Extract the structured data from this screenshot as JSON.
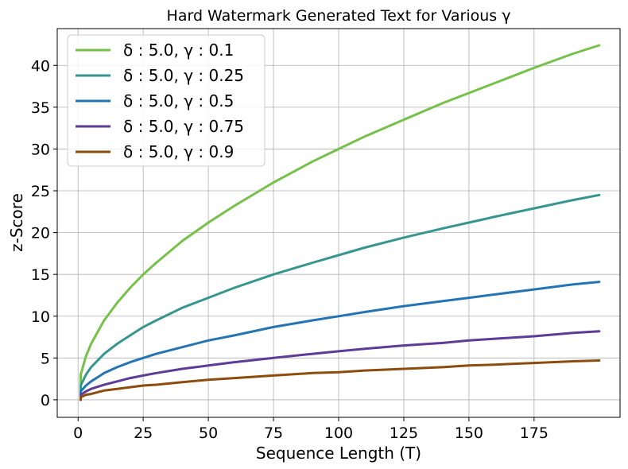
{
  "chart_data": {
    "type": "line",
    "title": "Hard Watermark Generated Text for Various γ",
    "xlabel": "Sequence Length (T)",
    "ylabel": "z-Score",
    "xlim": [
      -8,
      208
    ],
    "ylim": [
      -2.1,
      44.4
    ],
    "x_ticks": [
      0,
      25,
      50,
      75,
      100,
      125,
      150,
      175
    ],
    "y_ticks": [
      0,
      5,
      10,
      15,
      20,
      25,
      30,
      35,
      40
    ],
    "x": [
      1,
      3,
      5,
      10,
      15,
      20,
      25,
      30,
      40,
      50,
      60,
      75,
      90,
      100,
      110,
      125,
      140,
      150,
      160,
      175,
      190,
      200
    ],
    "grid": true,
    "legend_position": "top-left",
    "series": [
      {
        "name": "δ : 5.0, γ : 0.1",
        "color": "#77c04a",
        "values": [
          3.0,
          5.2,
          6.7,
          9.5,
          11.6,
          13.4,
          15.0,
          16.4,
          19.0,
          21.2,
          23.2,
          26.0,
          28.5,
          30.0,
          31.5,
          33.5,
          35.5,
          36.7,
          37.9,
          39.7,
          41.4,
          42.4
        ]
      },
      {
        "name": "δ : 5.0, γ : 0.25",
        "color": "#36968f",
        "values": [
          1.7,
          3.0,
          3.9,
          5.5,
          6.7,
          7.7,
          8.7,
          9.5,
          11.0,
          12.2,
          13.4,
          15.0,
          16.4,
          17.3,
          18.2,
          19.4,
          20.5,
          21.2,
          21.9,
          22.9,
          23.9,
          24.5
        ]
      },
      {
        "name": "δ : 5.0, γ : 0.5",
        "color": "#2474b4",
        "values": [
          1.0,
          1.7,
          2.2,
          3.2,
          3.9,
          4.5,
          5.0,
          5.5,
          6.3,
          7.1,
          7.7,
          8.7,
          9.5,
          10.0,
          10.5,
          11.2,
          11.8,
          12.2,
          12.6,
          13.2,
          13.8,
          14.1
        ]
      },
      {
        "name": "δ : 5.0, γ : 0.75",
        "color": "#5e3b97",
        "values": [
          0.6,
          1.0,
          1.3,
          1.8,
          2.2,
          2.6,
          2.9,
          3.2,
          3.7,
          4.1,
          4.5,
          5.0,
          5.5,
          5.8,
          6.1,
          6.5,
          6.8,
          7.1,
          7.3,
          7.6,
          8.0,
          8.2
        ]
      },
      {
        "name": "δ : 5.0, γ : 0.9",
        "color": "#8c4c0d",
        "values": [
          0.3,
          0.6,
          0.7,
          1.1,
          1.3,
          1.5,
          1.7,
          1.8,
          2.1,
          2.4,
          2.6,
          2.9,
          3.2,
          3.3,
          3.5,
          3.7,
          3.9,
          4.1,
          4.2,
          4.4,
          4.6,
          4.7
        ]
      }
    ]
  }
}
